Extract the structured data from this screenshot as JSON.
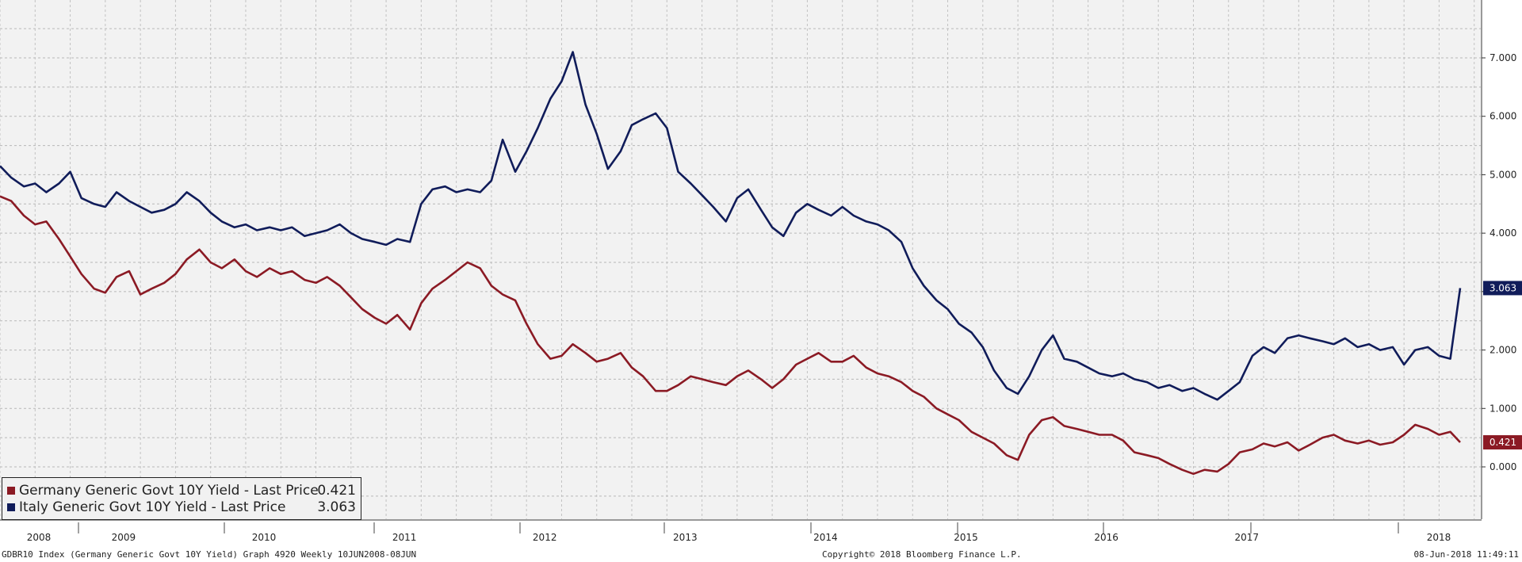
{
  "chart_data": {
    "type": "line",
    "title": "",
    "xlabel": "",
    "ylabel": "",
    "x_tick_labels": [
      "2008",
      "2009",
      "2010",
      "2011",
      "2012",
      "2013",
      "2014",
      "2015",
      "2016",
      "2017",
      "2018"
    ],
    "y_tick_labels": [
      "0.000",
      "1.000",
      "2.000",
      "3.000",
      "4.000",
      "5.000",
      "6.000",
      "7.000"
    ],
    "ylim": [
      -1.0,
      8.0
    ],
    "xlim": [
      2008.3,
      2018.5
    ],
    "grid": true,
    "legend_position": "bottom-left",
    "series": [
      {
        "name": "Germany Generic Govt 10Y Yield - Last Price",
        "legend_value": "0.421",
        "last_value_label": "0.421",
        "color": "#8b1a24",
        "points": [
          [
            2008.0,
            4.63
          ],
          [
            2008.08,
            4.55
          ],
          [
            2008.17,
            4.3
          ],
          [
            2008.25,
            4.15
          ],
          [
            2008.33,
            4.2
          ],
          [
            2008.42,
            3.9
          ],
          [
            2008.5,
            3.6
          ],
          [
            2008.58,
            3.3
          ],
          [
            2008.67,
            3.05
          ],
          [
            2008.75,
            2.98
          ],
          [
            2008.83,
            3.25
          ],
          [
            2008.92,
            3.35
          ],
          [
            2009.0,
            2.95
          ],
          [
            2009.08,
            3.05
          ],
          [
            2009.17,
            3.15
          ],
          [
            2009.25,
            3.3
          ],
          [
            2009.33,
            3.55
          ],
          [
            2009.42,
            3.72
          ],
          [
            2009.5,
            3.5
          ],
          [
            2009.58,
            3.4
          ],
          [
            2009.67,
            3.55
          ],
          [
            2009.75,
            3.35
          ],
          [
            2009.83,
            3.25
          ],
          [
            2009.92,
            3.4
          ],
          [
            2010.0,
            3.3
          ],
          [
            2010.08,
            3.35
          ],
          [
            2010.17,
            3.2
          ],
          [
            2010.25,
            3.15
          ],
          [
            2010.33,
            3.25
          ],
          [
            2010.42,
            3.1
          ],
          [
            2010.5,
            2.9
          ],
          [
            2010.58,
            2.7
          ],
          [
            2010.67,
            2.55
          ],
          [
            2010.75,
            2.45
          ],
          [
            2010.83,
            2.6
          ],
          [
            2010.92,
            2.35
          ],
          [
            2011.0,
            2.8
          ],
          [
            2011.08,
            3.05
          ],
          [
            2011.17,
            3.2
          ],
          [
            2011.25,
            3.35
          ],
          [
            2011.33,
            3.5
          ],
          [
            2011.42,
            3.4
          ],
          [
            2011.5,
            3.1
          ],
          [
            2011.58,
            2.95
          ],
          [
            2011.67,
            2.85
          ],
          [
            2011.75,
            2.45
          ],
          [
            2011.83,
            2.1
          ],
          [
            2011.92,
            1.85
          ],
          [
            2012.0,
            1.9
          ],
          [
            2012.08,
            2.1
          ],
          [
            2012.17,
            1.95
          ],
          [
            2012.25,
            1.8
          ],
          [
            2012.33,
            1.85
          ],
          [
            2012.42,
            1.95
          ],
          [
            2012.5,
            1.7
          ],
          [
            2012.58,
            1.55
          ],
          [
            2012.67,
            1.3
          ],
          [
            2012.75,
            1.3
          ],
          [
            2012.83,
            1.4
          ],
          [
            2012.92,
            1.55
          ],
          [
            2013.0,
            1.5
          ],
          [
            2013.08,
            1.45
          ],
          [
            2013.17,
            1.4
          ],
          [
            2013.25,
            1.55
          ],
          [
            2013.33,
            1.65
          ],
          [
            2013.42,
            1.5
          ],
          [
            2013.5,
            1.35
          ],
          [
            2013.58,
            1.5
          ],
          [
            2013.67,
            1.75
          ],
          [
            2013.75,
            1.85
          ],
          [
            2013.83,
            1.95
          ],
          [
            2013.92,
            1.8
          ],
          [
            2014.0,
            1.8
          ],
          [
            2014.08,
            1.9
          ],
          [
            2014.17,
            1.7
          ],
          [
            2014.25,
            1.6
          ],
          [
            2014.33,
            1.55
          ],
          [
            2014.42,
            1.45
          ],
          [
            2014.5,
            1.3
          ],
          [
            2014.58,
            1.2
          ],
          [
            2014.67,
            1.0
          ],
          [
            2014.75,
            0.9
          ],
          [
            2014.83,
            0.8
          ],
          [
            2014.92,
            0.6
          ],
          [
            2015.0,
            0.5
          ],
          [
            2015.08,
            0.4
          ],
          [
            2015.17,
            0.2
          ],
          [
            2015.25,
            0.12
          ],
          [
            2015.33,
            0.55
          ],
          [
            2015.42,
            0.8
          ],
          [
            2015.5,
            0.85
          ],
          [
            2015.58,
            0.7
          ],
          [
            2015.67,
            0.65
          ],
          [
            2015.75,
            0.6
          ],
          [
            2015.83,
            0.55
          ],
          [
            2015.92,
            0.55
          ],
          [
            2016.0,
            0.45
          ],
          [
            2016.08,
            0.25
          ],
          [
            2016.17,
            0.2
          ],
          [
            2016.25,
            0.15
          ],
          [
            2016.33,
            0.05
          ],
          [
            2016.42,
            -0.05
          ],
          [
            2016.5,
            -0.12
          ],
          [
            2016.58,
            -0.05
          ],
          [
            2016.67,
            -0.08
          ],
          [
            2016.75,
            0.05
          ],
          [
            2016.83,
            0.25
          ],
          [
            2016.92,
            0.3
          ],
          [
            2017.0,
            0.4
          ],
          [
            2017.08,
            0.35
          ],
          [
            2017.17,
            0.42
          ],
          [
            2017.25,
            0.28
          ],
          [
            2017.33,
            0.38
          ],
          [
            2017.42,
            0.5
          ],
          [
            2017.5,
            0.55
          ],
          [
            2017.58,
            0.45
          ],
          [
            2017.67,
            0.4
          ],
          [
            2017.75,
            0.45
          ],
          [
            2017.83,
            0.38
          ],
          [
            2017.92,
            0.42
          ],
          [
            2018.0,
            0.55
          ],
          [
            2018.08,
            0.72
          ],
          [
            2018.17,
            0.65
          ],
          [
            2018.25,
            0.55
          ],
          [
            2018.33,
            0.6
          ],
          [
            2018.4,
            0.42
          ]
        ]
      },
      {
        "name": "Italy Generic Govt 10Y Yield - Last Price",
        "legend_value": "3.063",
        "last_value_label": "3.063",
        "color": "#101c5a",
        "points": [
          [
            2008.0,
            5.15
          ],
          [
            2008.08,
            4.95
          ],
          [
            2008.17,
            4.8
          ],
          [
            2008.25,
            4.85
          ],
          [
            2008.33,
            4.7
          ],
          [
            2008.42,
            4.85
          ],
          [
            2008.5,
            5.05
          ],
          [
            2008.58,
            4.6
          ],
          [
            2008.67,
            4.5
          ],
          [
            2008.75,
            4.45
          ],
          [
            2008.83,
            4.7
          ],
          [
            2008.92,
            4.55
          ],
          [
            2009.0,
            4.45
          ],
          [
            2009.08,
            4.35
          ],
          [
            2009.17,
            4.4
          ],
          [
            2009.25,
            4.5
          ],
          [
            2009.33,
            4.7
          ],
          [
            2009.42,
            4.55
          ],
          [
            2009.5,
            4.35
          ],
          [
            2009.58,
            4.2
          ],
          [
            2009.67,
            4.1
          ],
          [
            2009.75,
            4.15
          ],
          [
            2009.83,
            4.05
          ],
          [
            2009.92,
            4.1
          ],
          [
            2010.0,
            4.05
          ],
          [
            2010.08,
            4.1
          ],
          [
            2010.17,
            3.95
          ],
          [
            2010.25,
            4.0
          ],
          [
            2010.33,
            4.05
          ],
          [
            2010.42,
            4.15
          ],
          [
            2010.5,
            4.0
          ],
          [
            2010.58,
            3.9
          ],
          [
            2010.67,
            3.85
          ],
          [
            2010.75,
            3.8
          ],
          [
            2010.83,
            3.9
          ],
          [
            2010.92,
            3.85
          ],
          [
            2011.0,
            4.5
          ],
          [
            2011.08,
            4.75
          ],
          [
            2011.17,
            4.8
          ],
          [
            2011.25,
            4.7
          ],
          [
            2011.33,
            4.75
          ],
          [
            2011.42,
            4.7
          ],
          [
            2011.5,
            4.9
          ],
          [
            2011.58,
            5.6
          ],
          [
            2011.67,
            5.05
          ],
          [
            2011.75,
            5.4
          ],
          [
            2011.83,
            5.8
          ],
          [
            2011.92,
            6.3
          ],
          [
            2012.0,
            6.6
          ],
          [
            2012.08,
            7.1
          ],
          [
            2012.17,
            6.2
          ],
          [
            2012.25,
            5.7
          ],
          [
            2012.33,
            5.1
          ],
          [
            2012.42,
            5.4
          ],
          [
            2012.5,
            5.85
          ],
          [
            2012.58,
            5.95
          ],
          [
            2012.67,
            6.05
          ],
          [
            2012.75,
            5.8
          ],
          [
            2012.83,
            5.05
          ],
          [
            2012.92,
            4.85
          ],
          [
            2013.0,
            4.65
          ],
          [
            2013.08,
            4.45
          ],
          [
            2013.17,
            4.2
          ],
          [
            2013.25,
            4.6
          ],
          [
            2013.33,
            4.75
          ],
          [
            2013.42,
            4.4
          ],
          [
            2013.5,
            4.1
          ],
          [
            2013.58,
            3.95
          ],
          [
            2013.67,
            4.35
          ],
          [
            2013.75,
            4.5
          ],
          [
            2013.83,
            4.4
          ],
          [
            2013.92,
            4.3
          ],
          [
            2014.0,
            4.45
          ],
          [
            2014.08,
            4.3
          ],
          [
            2014.17,
            4.2
          ],
          [
            2014.25,
            4.15
          ],
          [
            2014.33,
            4.05
          ],
          [
            2014.42,
            3.85
          ],
          [
            2014.5,
            3.4
          ],
          [
            2014.58,
            3.1
          ],
          [
            2014.67,
            2.85
          ],
          [
            2014.75,
            2.7
          ],
          [
            2014.83,
            2.45
          ],
          [
            2014.92,
            2.3
          ],
          [
            2015.0,
            2.05
          ],
          [
            2015.08,
            1.65
          ],
          [
            2015.17,
            1.35
          ],
          [
            2015.25,
            1.25
          ],
          [
            2015.33,
            1.55
          ],
          [
            2015.42,
            2.0
          ],
          [
            2015.5,
            2.25
          ],
          [
            2015.58,
            1.85
          ],
          [
            2015.67,
            1.8
          ],
          [
            2015.75,
            1.7
          ],
          [
            2015.83,
            1.6
          ],
          [
            2015.92,
            1.55
          ],
          [
            2016.0,
            1.6
          ],
          [
            2016.08,
            1.5
          ],
          [
            2016.17,
            1.45
          ],
          [
            2016.25,
            1.35
          ],
          [
            2016.33,
            1.4
          ],
          [
            2016.42,
            1.3
          ],
          [
            2016.5,
            1.35
          ],
          [
            2016.58,
            1.25
          ],
          [
            2016.67,
            1.15
          ],
          [
            2016.75,
            1.3
          ],
          [
            2016.83,
            1.45
          ],
          [
            2016.92,
            1.9
          ],
          [
            2017.0,
            2.05
          ],
          [
            2017.08,
            1.95
          ],
          [
            2017.17,
            2.2
          ],
          [
            2017.25,
            2.25
          ],
          [
            2017.33,
            2.2
          ],
          [
            2017.42,
            2.15
          ],
          [
            2017.5,
            2.1
          ],
          [
            2017.58,
            2.2
          ],
          [
            2017.67,
            2.05
          ],
          [
            2017.75,
            2.1
          ],
          [
            2017.83,
            2.0
          ],
          [
            2017.92,
            2.05
          ],
          [
            2018.0,
            1.75
          ],
          [
            2018.08,
            2.0
          ],
          [
            2018.17,
            2.05
          ],
          [
            2018.25,
            1.9
          ],
          [
            2018.33,
            1.85
          ],
          [
            2018.4,
            3.06
          ]
        ]
      }
    ]
  },
  "footer": {
    "left": "GDBR10 Index (Germany Generic Govt 10Y Yield) Graph 4920  Weekly 10JUN2008-08JUN",
    "center": "Copyright© 2018 Bloomberg Finance L.P.",
    "right": "08-Jun-2018 11:49:11"
  }
}
